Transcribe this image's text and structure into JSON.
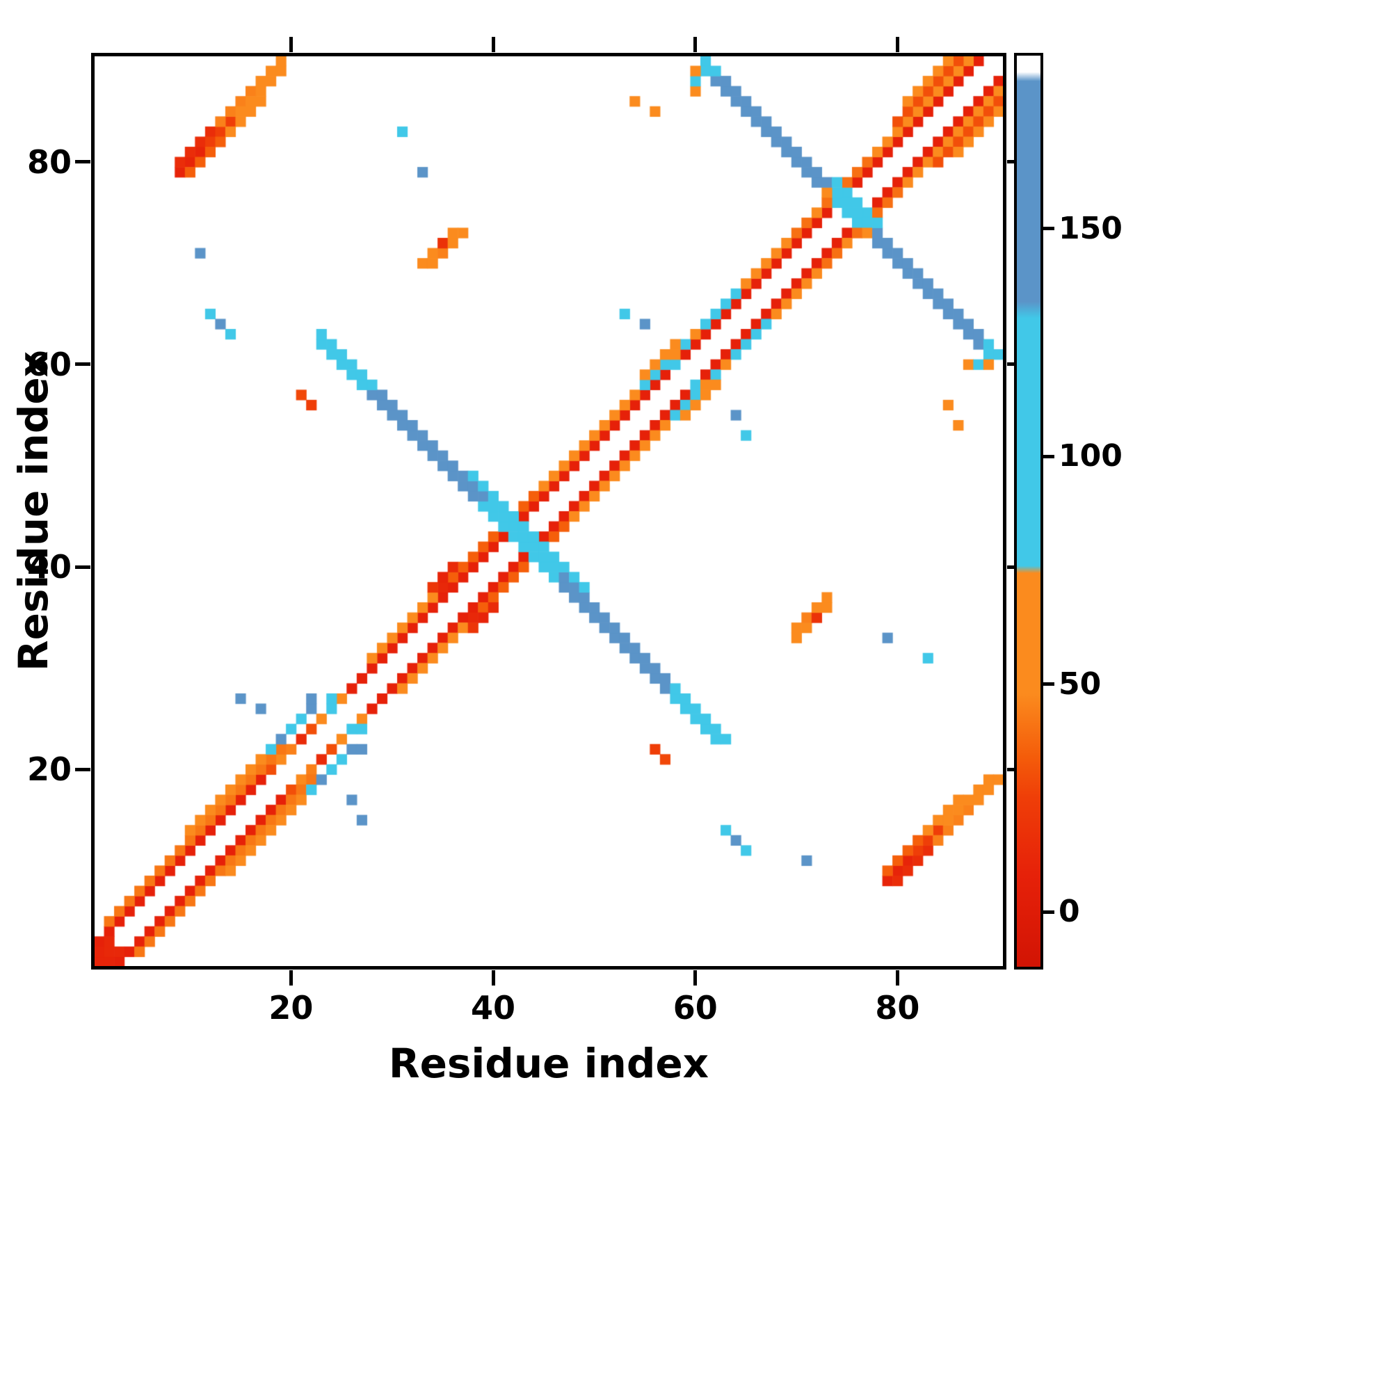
{
  "chart_data": {
    "type": "heatmap",
    "title": "",
    "xlabel": "Residue index",
    "ylabel": "Residue index",
    "n": 90,
    "x_range": [
      0.5,
      90.5
    ],
    "y_range": [
      0.5,
      90.5
    ],
    "x_ticks": [
      20,
      40,
      60,
      80
    ],
    "y_ticks": [
      20,
      40,
      60,
      80
    ],
    "symmetric": true,
    "background_color": "#ffffff",
    "value_range": [
      -12,
      188
    ],
    "colorbar": {
      "ticks": [
        0,
        50,
        100,
        150
      ],
      "stops": [
        {
          "pos": 0.0,
          "color": "#d21404"
        },
        {
          "pos": 0.1,
          "color": "#e62109"
        },
        {
          "pos": 0.185,
          "color": "#ef3e08"
        },
        {
          "pos": 0.23,
          "color": "#f45c0a"
        },
        {
          "pos": 0.3,
          "color": "#fb8b1e"
        },
        {
          "pos": 0.432,
          "color": "#fb8b1e"
        },
        {
          "pos": 0.44,
          "color": "#41c8e8"
        },
        {
          "pos": 0.712,
          "color": "#41c8e8"
        },
        {
          "pos": 0.73,
          "color": "#5b94c8"
        },
        {
          "pos": 0.972,
          "color": "#5b94c8"
        },
        {
          "pos": 0.982,
          "color": "#ffffff"
        },
        {
          "pos": 1.0,
          "color": "#ffffff"
        }
      ]
    },
    "bands": [
      {
        "t": "diag",
        "a": 1,
        "b": 88,
        "o": 2,
        "v": 8
      },
      {
        "t": "diag",
        "a": 2,
        "b": 19,
        "o": 3,
        "v": 42
      },
      {
        "t": "diag",
        "a": 10,
        "b": 17,
        "o": 4,
        "v": 55
      },
      {
        "t": "diag",
        "a": 28,
        "b": 35,
        "o": 3,
        "v": 50
      },
      {
        "t": "diag",
        "a": 36,
        "b": 44,
        "o": 3,
        "v": 35
      },
      {
        "t": "diag",
        "a": 45,
        "b": 54,
        "o": 3,
        "v": 52
      },
      {
        "t": "diag",
        "a": 55,
        "b": 60,
        "o": 3,
        "v": 60
      },
      {
        "t": "diag",
        "a": 55,
        "b": 58,
        "o": 4,
        "v": 62
      },
      {
        "t": "diag",
        "a": 61,
        "b": 69,
        "o": 3,
        "v": 55
      },
      {
        "t": "diag",
        "a": 70,
        "b": 77,
        "o": 3,
        "v": 40
      },
      {
        "t": "diag",
        "a": 78,
        "b": 87,
        "o": 3,
        "v": 48
      },
      {
        "t": "diag",
        "a": 80,
        "b": 86,
        "o": 4,
        "v": 30
      },
      {
        "t": "diag",
        "a": 81,
        "b": 85,
        "o": 5,
        "v": 55
      },
      {
        "t": "diag",
        "a": 9,
        "b": 11,
        "o": 70,
        "v": 10
      },
      {
        "t": "diag",
        "a": 9,
        "b": 12,
        "o": 71,
        "v": 15
      },
      {
        "t": "diag",
        "a": 12,
        "b": 14,
        "o": 70,
        "v": 25
      },
      {
        "t": "diag",
        "a": 13,
        "b": 16,
        "o": 71,
        "v": 45
      },
      {
        "t": "diag",
        "a": 15,
        "b": 19,
        "o": 70,
        "v": 50
      },
      {
        "t": "diag",
        "a": 17,
        "b": 19,
        "o": 71,
        "v": 55
      },
      {
        "t": "diag",
        "a": 10,
        "b": 13,
        "o": 69,
        "v": 35
      },
      {
        "t": "diag",
        "a": 14,
        "b": 17,
        "o": 69,
        "v": 55
      },
      {
        "t": "anti",
        "s": 85,
        "a": 23,
        "b": 27,
        "v": 108,
        "w": 2
      },
      {
        "t": "anti",
        "s": 85,
        "a": 28,
        "b": 31,
        "v": 150,
        "w": 2
      },
      {
        "t": "anti",
        "s": 85,
        "a": 32,
        "b": 34,
        "v": 158,
        "w": 2
      },
      {
        "t": "anti",
        "s": 85,
        "a": 35,
        "b": 37,
        "v": 145,
        "w": 2
      },
      {
        "t": "anti",
        "s": 85,
        "a": 38,
        "b": 41,
        "v": 112,
        "w": 3
      },
      {
        "t": "anti",
        "s": 85,
        "a": 42,
        "b": 46,
        "v": 108,
        "w": 3
      },
      {
        "t": "anti",
        "s": 85,
        "a": 47,
        "b": 50,
        "v": 148,
        "w": 2
      },
      {
        "t": "anti",
        "s": 85,
        "a": 51,
        "b": 54,
        "v": 158,
        "w": 2
      },
      {
        "t": "anti",
        "s": 85,
        "a": 55,
        "b": 57,
        "v": 150,
        "w": 2
      },
      {
        "t": "anti",
        "s": 85,
        "a": 58,
        "b": 61,
        "v": 110,
        "w": 2
      },
      {
        "t": "anti",
        "s": 150,
        "a": 61,
        "b": 63,
        "v": 110,
        "w": 2
      },
      {
        "t": "anti",
        "s": 150,
        "a": 64,
        "b": 67,
        "v": 150,
        "w": 2
      },
      {
        "t": "anti",
        "s": 150,
        "a": 68,
        "b": 70,
        "v": 158,
        "w": 2
      },
      {
        "t": "anti",
        "s": 150,
        "a": 71,
        "b": 73,
        "v": 140,
        "w": 2
      },
      {
        "t": "anti",
        "s": 150,
        "a": 74,
        "b": 77,
        "v": 112,
        "w": 3
      },
      {
        "t": "anti",
        "s": 150,
        "a": 78,
        "b": 81,
        "v": 148,
        "w": 2
      },
      {
        "t": "anti",
        "s": 150,
        "a": 82,
        "b": 85,
        "v": 158,
        "w": 2
      },
      {
        "t": "anti",
        "s": 150,
        "a": 86,
        "b": 88,
        "v": 150,
        "w": 2
      },
      {
        "t": "anti",
        "s": 150,
        "a": 89,
        "b": 89,
        "v": 112,
        "w": 2
      }
    ],
    "points": [
      [
        31,
        83,
        112
      ],
      [
        33,
        79,
        150
      ],
      [
        11,
        71,
        152
      ],
      [
        12,
        65,
        110
      ],
      [
        13,
        64,
        150
      ],
      [
        14,
        63,
        110
      ],
      [
        15,
        27,
        152
      ],
      [
        17,
        26,
        150
      ],
      [
        53,
        65,
        112
      ],
      [
        55,
        64,
        152
      ],
      [
        54,
        86,
        55
      ],
      [
        56,
        85,
        52
      ],
      [
        60,
        87,
        55
      ],
      [
        60,
        88,
        110
      ],
      [
        60,
        89,
        108
      ],
      [
        89,
        60,
        55
      ],
      [
        33,
        70,
        58
      ],
      [
        34,
        70,
        52
      ],
      [
        34,
        71,
        50
      ],
      [
        35,
        71,
        45
      ],
      [
        35,
        72,
        18
      ],
      [
        36,
        72,
        50
      ],
      [
        36,
        73,
        52
      ],
      [
        37,
        73,
        55
      ],
      [
        17,
        21,
        55
      ],
      [
        18,
        20,
        30
      ],
      [
        18,
        22,
        108
      ],
      [
        19,
        21,
        50
      ],
      [
        19,
        23,
        150
      ],
      [
        20,
        22,
        45
      ],
      [
        20,
        24,
        108
      ],
      [
        21,
        23,
        14
      ],
      [
        21,
        25,
        108
      ],
      [
        22,
        24,
        30
      ],
      [
        22,
        26,
        150
      ],
      [
        22,
        27,
        152
      ],
      [
        23,
        25,
        50
      ],
      [
        24,
        26,
        108
      ],
      [
        24,
        27,
        112
      ],
      [
        25,
        27,
        60
      ],
      [
        21,
        57,
        28
      ],
      [
        22,
        56,
        25
      ],
      [
        55,
        58,
        108
      ],
      [
        56,
        59,
        108
      ],
      [
        57,
        60,
        112
      ],
      [
        58,
        60,
        110
      ],
      [
        59,
        62,
        108
      ],
      [
        61,
        64,
        108
      ],
      [
        62,
        65,
        108
      ],
      [
        63,
        66,
        110
      ],
      [
        64,
        67,
        110
      ],
      [
        72,
        75,
        60
      ],
      [
        73,
        77,
        55
      ],
      [
        34,
        38,
        20
      ],
      [
        35,
        38,
        12
      ],
      [
        35,
        39,
        10
      ],
      [
        36,
        40,
        14
      ],
      [
        1,
        1,
        10
      ],
      [
        1,
        2,
        10
      ],
      [
        2,
        2,
        12
      ],
      [
        2,
        3,
        12
      ]
    ]
  }
}
